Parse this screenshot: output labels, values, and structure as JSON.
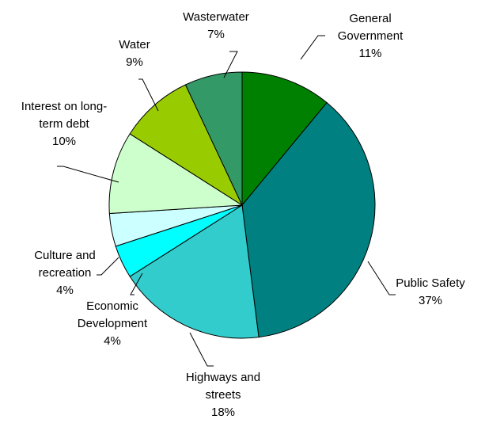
{
  "chart_data": {
    "type": "pie",
    "title": "",
    "legend": "none",
    "slices": [
      {
        "label_lines": [
          "General",
          "Government"
        ],
        "value_label": "11%",
        "value": 11,
        "color": "#008000"
      },
      {
        "label_lines": [
          "Public Safety"
        ],
        "value_label": "37%",
        "value": 37,
        "color": "#008080"
      },
      {
        "label_lines": [
          "Highways and",
          "streets"
        ],
        "value_label": "18%",
        "value": 18,
        "color": "#33CCCC"
      },
      {
        "label_lines": [
          "Economic",
          "Development"
        ],
        "value_label": "4%",
        "value": 4,
        "color": "#00FFFF"
      },
      {
        "label_lines": [
          "Culture and",
          "recreation"
        ],
        "value_label": "4%",
        "value": 4,
        "color": "#CCFFFF"
      },
      {
        "label_lines": [
          "Interest on long-",
          "term debt"
        ],
        "value_label": "10%",
        "value": 10,
        "color": "#CCFFCC"
      },
      {
        "label_lines": [
          "Water"
        ],
        "value_label": "9%",
        "value": 9,
        "color": "#99CC00"
      },
      {
        "label_lines": [
          "Wasterwater"
        ],
        "value_label": "7%",
        "value": 7,
        "color": "#339966"
      }
    ]
  }
}
